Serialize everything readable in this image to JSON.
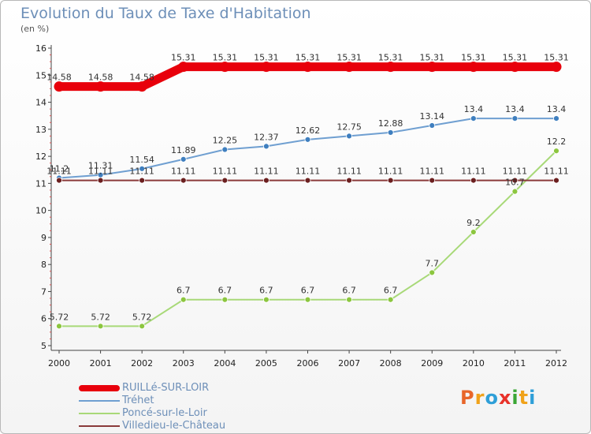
{
  "title": "Evolution du Taux de Taxe d'Habitation",
  "unit_label": "(en %)",
  "logo": {
    "text": "Proxiti",
    "letter_colors": [
      "#e8662a",
      "#f0a21a",
      "#2e9fd8",
      "#e8322a",
      "#3aa635",
      "#f0a21a",
      "#2e9fd8"
    ]
  },
  "chart_data": {
    "type": "line",
    "x": [
      "2000",
      "2001",
      "2002",
      "2003",
      "2004",
      "2005",
      "2006",
      "2007",
      "2008",
      "2009",
      "2010",
      "2011",
      "2012"
    ],
    "ylim": [
      5,
      16
    ],
    "yticks": [
      "5",
      "6",
      "7",
      "8",
      "9",
      "10",
      "11",
      "12",
      "13",
      "14",
      "15",
      "16"
    ],
    "grid": false,
    "legend_position": "bottom-left",
    "series": [
      {
        "name": "RUILLé-SUR-LOIR",
        "color": "#e8000b",
        "marker_color": "#e8000b",
        "values": [
          14.58,
          14.58,
          14.58,
          15.31,
          15.31,
          15.31,
          15.31,
          15.31,
          15.31,
          15.31,
          15.31,
          15.31,
          15.31
        ],
        "labels": [
          "14.58",
          "14.58",
          "14.58",
          "15.31",
          "15.31",
          "15.31",
          "15.31",
          "15.31",
          "15.31",
          "15.31",
          "15.31",
          "15.31",
          "15.31"
        ]
      },
      {
        "name": "Tréhet",
        "color": "#6f9fd1",
        "marker_color": "#3f7fbf",
        "values": [
          11.2,
          11.31,
          11.54,
          11.89,
          12.25,
          12.37,
          12.62,
          12.75,
          12.88,
          13.14,
          13.4,
          13.4,
          13.4
        ],
        "labels": [
          "11.2",
          "11.31",
          "11.54",
          "11.89",
          "12.25",
          "12.37",
          "12.62",
          "12.75",
          "12.88",
          "13.14",
          "13.4",
          "13.4",
          "13.4"
        ]
      },
      {
        "name": "Poncé-sur-le-Loir",
        "color": "#a8d978",
        "marker_color": "#8cc63f",
        "values": [
          5.72,
          5.72,
          5.72,
          6.7,
          6.7,
          6.7,
          6.7,
          6.7,
          6.7,
          7.7,
          9.2,
          10.7,
          12.2
        ],
        "labels": [
          "5.72",
          "5.72",
          "5.72",
          "6.7",
          "6.7",
          "6.7",
          "6.7",
          "6.7",
          "6.7",
          "7.7",
          "9.2",
          "10.7",
          "12.2"
        ]
      },
      {
        "name": "Villedieu-le-Château",
        "color": "#8a3a3a",
        "marker_color": "#6b1f1f",
        "values": [
          11.11,
          11.11,
          11.11,
          11.11,
          11.11,
          11.11,
          11.11,
          11.11,
          11.11,
          11.11,
          11.11,
          11.11,
          11.11
        ],
        "labels": [
          "11.11",
          "11.11",
          "11.11",
          "11.11",
          "11.11",
          "11.11",
          "11.11",
          "11.11",
          "11.11",
          "11.11",
          "11.11",
          "11.11",
          "11.11"
        ]
      }
    ]
  }
}
